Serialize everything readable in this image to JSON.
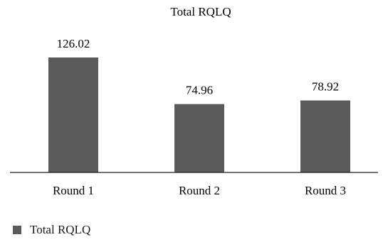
{
  "chart_data": {
    "type": "bar",
    "title": "Total RQLQ",
    "categories": [
      "Round 1",
      "Round 2",
      "Round 3"
    ],
    "series": [
      {
        "name": "Total RQLQ",
        "values": [
          126.02,
          74.96,
          78.92
        ],
        "color": "#5a5a5a"
      }
    ],
    "data_labels": [
      "126.02",
      "74.96",
      "78.92"
    ],
    "xlabel": "",
    "ylabel": "",
    "ylim": [
      0,
      130
    ],
    "grid": false,
    "legend_position": "bottom-left"
  }
}
